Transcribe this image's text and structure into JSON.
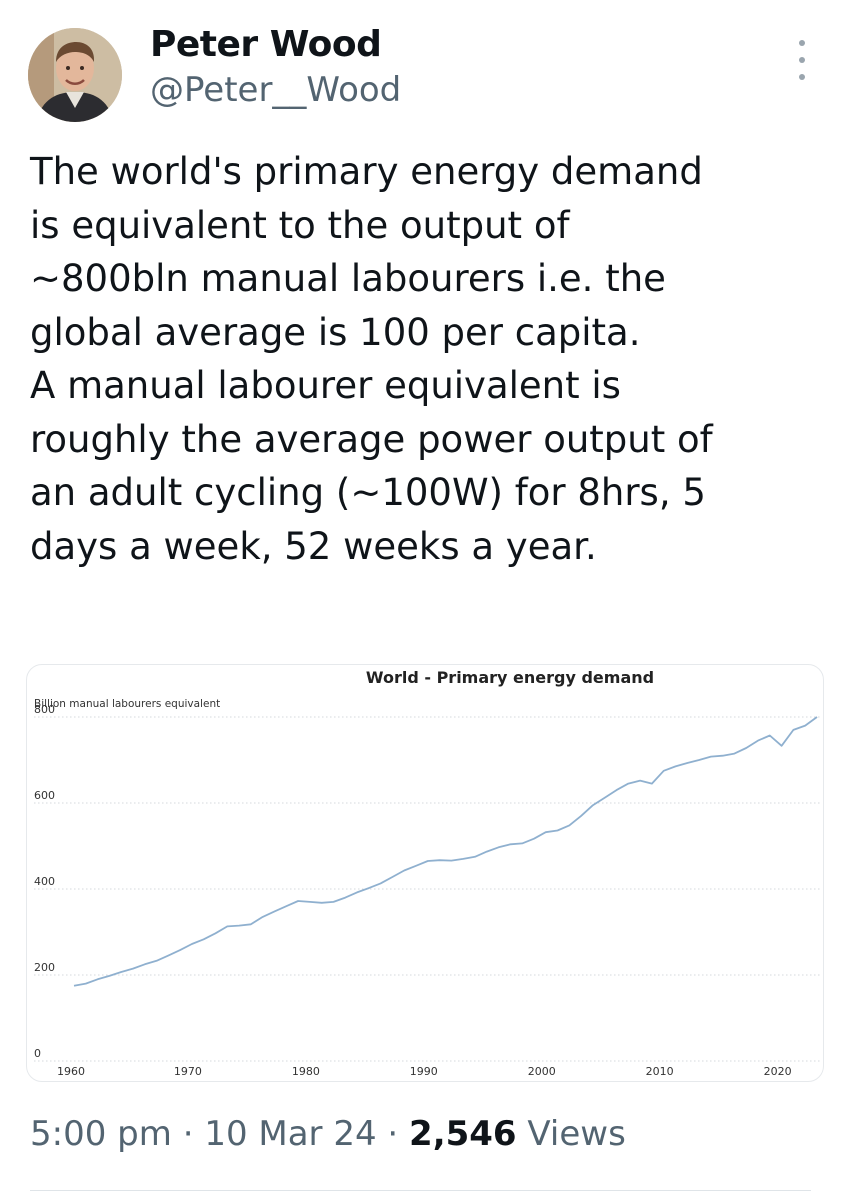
{
  "author": {
    "name": "Peter Wood",
    "handle": "@Peter__Wood",
    "avatar": "profile-photo"
  },
  "more_icon": "more-options-icon",
  "tweet_text": "The world's primary energy demand\nis equivalent to the output of\n~800bln manual labourers i.e. the\nglobal average is 100 per capita.\nA manual labourer equivalent is\nroughly the average power output of\nan adult cycling (~100W) for 8hrs, 5\ndays a week, 52 weeks a year.",
  "footer": {
    "time": "5:00 pm",
    "date": "10 Mar 24",
    "views_count": "2,546",
    "views_label": "Views",
    "separator": "·"
  },
  "colors": {
    "text": "#0f1419",
    "secondary": "#536471",
    "line": "#8fb0cf"
  },
  "chart_data": {
    "type": "line",
    "title": "World - Primary energy demand",
    "ylabel": "Billion manual labourers equivalent",
    "xlabel": "",
    "ylim": [
      0,
      800
    ],
    "xlim": [
      1960,
      2023
    ],
    "y_ticks": [
      0,
      200,
      400,
      600,
      800
    ],
    "x_ticks": [
      1960,
      1970,
      1980,
      1990,
      2000,
      2010,
      2020
    ],
    "grid": "horizontal dotted",
    "series": [
      {
        "x": [
          1960,
          1961,
          1962,
          1963,
          1964,
          1965,
          1966,
          1967,
          1968,
          1969,
          1970,
          1971,
          1972,
          1973,
          1974,
          1975,
          1976,
          1977,
          1978,
          1979,
          1980,
          1981,
          1982,
          1983,
          1984,
          1985,
          1986,
          1987,
          1988,
          1989,
          1990,
          1991,
          1992,
          1993,
          1994,
          1995,
          1996,
          1997,
          1998,
          1999,
          2000,
          2001,
          2002,
          2003,
          2004,
          2005,
          2006,
          2007,
          2008,
          2009,
          2010,
          2011,
          2012,
          2013,
          2014,
          2015,
          2016,
          2017,
          2018,
          2019,
          2020,
          2021,
          2022,
          2023
        ],
        "y": [
          175,
          180,
          190,
          198,
          207,
          215,
          225,
          233,
          245,
          258,
          272,
          283,
          297,
          313,
          315,
          318,
          335,
          348,
          360,
          372,
          370,
          368,
          370,
          380,
          392,
          402,
          413,
          428,
          443,
          454,
          465,
          467,
          466,
          470,
          475,
          487,
          497,
          504,
          506,
          517,
          532,
          536,
          548,
          570,
          595,
          612,
          630,
          645,
          652,
          645,
          675,
          685,
          693,
          700,
          708,
          710,
          715,
          728,
          745,
          757,
          733,
          770,
          780,
          800
        ]
      }
    ]
  }
}
